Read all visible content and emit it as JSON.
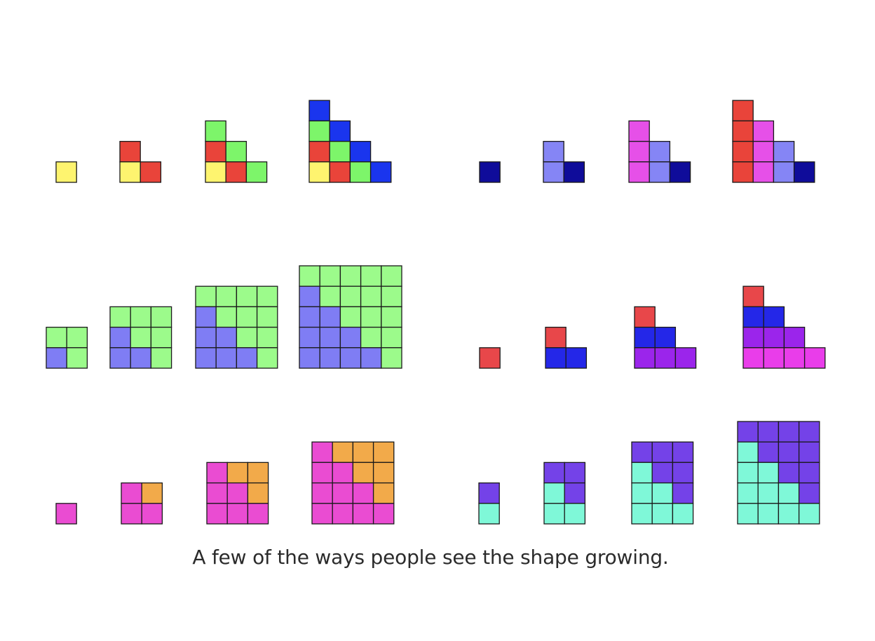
{
  "caption": "A few of the ways people see the shape growing.",
  "colors": {
    "yellow": "#FEF46F",
    "red": "#E9443A",
    "green": "#7DF56A",
    "blue": "#1A35EE",
    "navy": "#0F0C9A",
    "periwinkle": "#8585F5",
    "magenta": "#E650E8",
    "light_green": "#9CFB8B",
    "slate_blue": "#7F7DF4",
    "coral": "#E8474A",
    "royal_blue": "#2427E8",
    "violet": "#9B25EB",
    "hot_pink": "#E93DEA",
    "pink": "#EA4CD2",
    "orange": "#F2AA4A",
    "purple": "#7442E8",
    "aqua": "#7FF8D8",
    "grid_stroke": "#1a1a1a"
  },
  "panels": [
    {
      "name": "staircase-by-diagonals",
      "stages": [
        [
          [
            "yellow"
          ]
        ],
        [
          [
            "red",
            null
          ],
          [
            "yellow",
            "red"
          ]
        ],
        [
          [
            "green",
            null,
            null
          ],
          [
            "red",
            "green",
            null
          ],
          [
            "yellow",
            "red",
            "green"
          ]
        ],
        [
          [
            "blue",
            null,
            null,
            null
          ],
          [
            "green",
            "blue",
            null,
            null
          ],
          [
            "red",
            "green",
            "blue",
            null
          ],
          [
            "yellow",
            "red",
            "green",
            "blue"
          ]
        ]
      ]
    },
    {
      "name": "staircase-by-columns",
      "stages": [
        [
          [
            "navy"
          ]
        ],
        [
          [
            "periwinkle",
            null
          ],
          [
            "periwinkle",
            "navy"
          ]
        ],
        [
          [
            "magenta",
            null,
            null
          ],
          [
            "magenta",
            "periwinkle",
            null
          ],
          [
            "magenta",
            "periwinkle",
            "navy"
          ]
        ],
        [
          [
            "red",
            null,
            null,
            null
          ],
          [
            "red",
            "magenta",
            null,
            null
          ],
          [
            "red",
            "magenta",
            "periwinkle",
            null
          ],
          [
            "red",
            "magenta",
            "periwinkle",
            "navy"
          ]
        ]
      ]
    },
    {
      "name": "half-of-square",
      "stages": [
        [
          [
            "light_green",
            "light_green"
          ],
          [
            "slate_blue",
            "light_green"
          ]
        ],
        [
          [
            "light_green",
            "light_green",
            "light_green"
          ],
          [
            "slate_blue",
            "light_green",
            "light_green"
          ],
          [
            "slate_blue",
            "slate_blue",
            "light_green"
          ]
        ],
        [
          [
            "light_green",
            "light_green",
            "light_green",
            "light_green"
          ],
          [
            "slate_blue",
            "light_green",
            "light_green",
            "light_green"
          ],
          [
            "slate_blue",
            "slate_blue",
            "light_green",
            "light_green"
          ],
          [
            "slate_blue",
            "slate_blue",
            "slate_blue",
            "light_green"
          ]
        ],
        [
          [
            "light_green",
            "light_green",
            "light_green",
            "light_green",
            "light_green"
          ],
          [
            "slate_blue",
            "light_green",
            "light_green",
            "light_green",
            "light_green"
          ],
          [
            "slate_blue",
            "slate_blue",
            "light_green",
            "light_green",
            "light_green"
          ],
          [
            "slate_blue",
            "slate_blue",
            "slate_blue",
            "light_green",
            "light_green"
          ],
          [
            "slate_blue",
            "slate_blue",
            "slate_blue",
            "slate_blue",
            "light_green"
          ]
        ]
      ]
    },
    {
      "name": "staircase-by-rows",
      "stages": [
        [
          [
            "coral"
          ]
        ],
        [
          [
            "coral",
            null
          ],
          [
            "royal_blue",
            "royal_blue"
          ]
        ],
        [
          [
            "coral",
            null,
            null
          ],
          [
            "royal_blue",
            "royal_blue",
            null
          ],
          [
            "violet",
            "violet",
            "violet"
          ]
        ],
        [
          [
            "coral",
            null,
            null,
            null
          ],
          [
            "royal_blue",
            "royal_blue",
            null,
            null
          ],
          [
            "violet",
            "violet",
            "violet",
            null
          ],
          [
            "hot_pink",
            "hot_pink",
            "hot_pink",
            "hot_pink"
          ]
        ]
      ]
    },
    {
      "name": "square-growing",
      "stages": [
        [
          [
            "pink"
          ]
        ],
        [
          [
            "pink",
            "orange"
          ],
          [
            "pink",
            "pink"
          ]
        ],
        [
          [
            "pink",
            "orange",
            "orange"
          ],
          [
            "pink",
            "pink",
            "orange"
          ],
          [
            "pink",
            "pink",
            "pink"
          ]
        ],
        [
          [
            "pink",
            "orange",
            "orange",
            "orange"
          ],
          [
            "pink",
            "pink",
            "orange",
            "orange"
          ],
          [
            "pink",
            "pink",
            "pink",
            "orange"
          ],
          [
            "pink",
            "pink",
            "pink",
            "pink"
          ]
        ]
      ]
    },
    {
      "name": "rectangle-split",
      "stages": [
        [
          [
            "purple"
          ],
          [
            "aqua"
          ]
        ],
        [
          [
            "purple",
            "purple"
          ],
          [
            "aqua",
            "purple"
          ],
          [
            "aqua",
            "aqua"
          ]
        ],
        [
          [
            "purple",
            "purple",
            "purple"
          ],
          [
            "aqua",
            "purple",
            "purple"
          ],
          [
            "aqua",
            "aqua",
            "purple"
          ],
          [
            "aqua",
            "aqua",
            "aqua"
          ]
        ],
        [
          [
            "purple",
            "purple",
            "purple",
            "purple"
          ],
          [
            "aqua",
            "purple",
            "purple",
            "purple"
          ],
          [
            "aqua",
            "aqua",
            "purple",
            "purple"
          ],
          [
            "aqua",
            "aqua",
            "aqua",
            "purple"
          ],
          [
            "aqua",
            "aqua",
            "aqua",
            "aqua"
          ]
        ]
      ]
    }
  ]
}
